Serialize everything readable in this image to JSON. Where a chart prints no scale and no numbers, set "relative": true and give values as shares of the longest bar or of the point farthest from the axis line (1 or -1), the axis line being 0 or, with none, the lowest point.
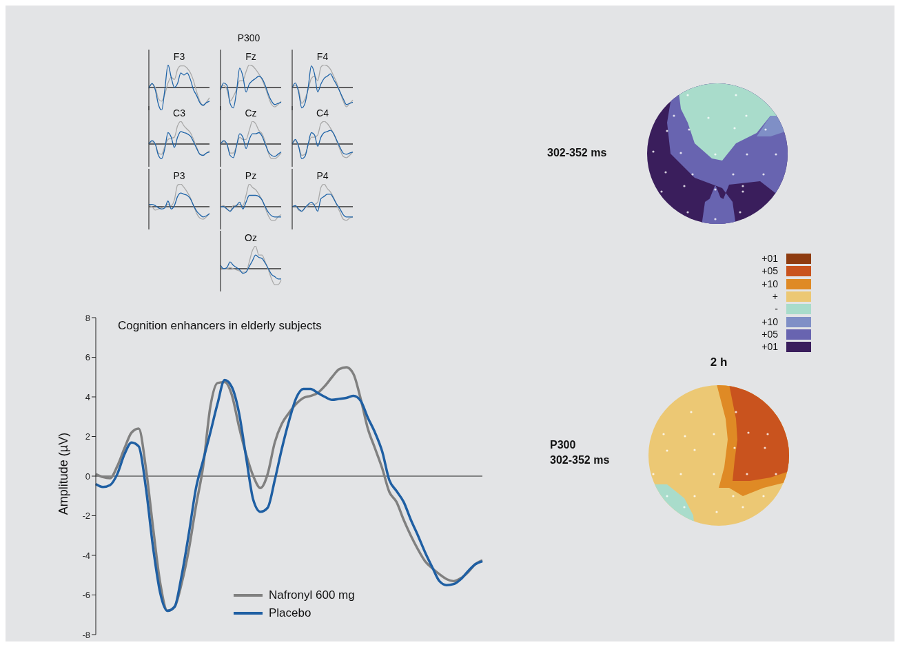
{
  "chart_data": [
    {
      "type": "line",
      "title": "Cognition enhancers in elderly subjects",
      "ylabel": "Amplitude (µV)",
      "legend": "bottom",
      "ylim": [
        -8,
        8
      ],
      "yticks": [
        -8,
        -6,
        -4,
        -2,
        0,
        2,
        4,
        6,
        8
      ],
      "categories": [
        null,
        null,
        null,
        null,
        null,
        null,
        null,
        null,
        null,
        null,
        null,
        null,
        null,
        null,
        null,
        null,
        null,
        null,
        null,
        null,
        null,
        null,
        null,
        null,
        null,
        null,
        null,
        null,
        null,
        null,
        null,
        null,
        null,
        null,
        null,
        null,
        null,
        null,
        null,
        null,
        null,
        null,
        null,
        null,
        null,
        null,
        null,
        null,
        null,
        null,
        null,
        null,
        null,
        null,
        null
      ],
      "series": [
        {
          "name": "Nafronyl 600 mg",
          "color": "#808080",
          "values": [
            0.1,
            -0.05,
            -0.1,
            0.5,
            1.4,
            2.2,
            2.4,
            0.4,
            -2.6,
            -5.4,
            -6.8,
            -6.6,
            -5.4,
            -3.7,
            -1.5,
            0.5,
            3.5,
            4.7,
            4.75,
            4.1,
            2.5,
            1.1,
            0,
            -0.6,
            0.1,
            1.7,
            2.65,
            3.2,
            3.65,
            3.95,
            4.05,
            4.2,
            4.55,
            5.0,
            5.4,
            5.5,
            5.15,
            3.9,
            2.4,
            1.4,
            0.4,
            -0.8,
            -1.3,
            -2.2,
            -3.0,
            -3.7,
            -4.3,
            -4.65,
            -4.95,
            -5.2,
            -5.3,
            -5.15,
            -4.85,
            -4.45,
            -4.25
          ]
        },
        {
          "name": "Placebo",
          "color": "#1f5fa3",
          "values": [
            -0.4,
            -0.55,
            -0.45,
            0.1,
            1.1,
            1.7,
            1.5,
            -0.6,
            -3.6,
            -5.9,
            -6.8,
            -6.6,
            -5.0,
            -2.9,
            -0.6,
            0.8,
            2.2,
            3.65,
            4.85,
            4.5,
            3.2,
            0.95,
            -1.2,
            -1.8,
            -1.6,
            -0.2,
            1.4,
            2.8,
            3.95,
            4.4,
            4.4,
            4.2,
            4.0,
            3.85,
            3.9,
            3.95,
            4.05,
            3.8,
            2.95,
            2.2,
            1.25,
            -0.2,
            -0.75,
            -1.3,
            -2.2,
            -3.0,
            -3.85,
            -4.6,
            -5.3,
            -5.5,
            -5.45,
            -5.2,
            -4.8,
            -4.45,
            -4.3
          ]
        }
      ]
    },
    {
      "type": "line",
      "title": "F3",
      "relative": true,
      "categories": [
        null,
        null,
        null,
        null,
        null,
        null,
        null,
        null,
        null,
        null,
        null,
        null,
        null,
        null,
        null,
        null,
        null,
        null,
        null,
        null
      ],
      "series": [
        {
          "color": "#a9a9a9",
          "values": [
            0,
            0.15,
            0,
            -0.5,
            -0.6,
            -0.3,
            0.2,
            0.45,
            0.35,
            0.8,
            0.95,
            0.95,
            0.85,
            0.65,
            0.3,
            -0.2,
            -0.6,
            -0.8,
            -0.65,
            -0.45
          ]
        },
        {
          "color": "#1f64a8",
          "values": [
            -0.04,
            0.18,
            -0.1,
            -0.75,
            -1.0,
            -0.1,
            1.0,
            0.45,
            0,
            0.18,
            0.64,
            0.55,
            0.64,
            0.36,
            -0.1,
            -0.36,
            -0.67,
            -0.78,
            -0.67,
            -0.6
          ]
        }
      ]
    },
    {
      "type": "line",
      "title": "Fz",
      "relative": true,
      "categories": [
        null,
        null,
        null,
        null,
        null,
        null,
        null,
        null,
        null,
        null,
        null,
        null,
        null,
        null,
        null,
        null,
        null,
        null,
        null,
        null
      ],
      "series": [
        {
          "color": "#a9a9a9",
          "values": [
            0,
            0.1,
            -0.1,
            -0.6,
            -0.4,
            -0.1,
            0.3,
            0.3,
            0.7,
            1.0,
            0.95,
            0.8,
            0.6,
            0.35,
            0,
            -0.4,
            -0.75,
            -0.85,
            -0.75,
            -0.6
          ]
        },
        {
          "color": "#1f64a8",
          "values": [
            -0.1,
            0.2,
            0.1,
            -0.7,
            -0.9,
            -0.2,
            0.85,
            0.5,
            -0.2,
            0.15,
            0.3,
            0.4,
            0.5,
            0.4,
            0.1,
            -0.3,
            -0.6,
            -0.75,
            -0.7,
            -0.65
          ]
        }
      ]
    },
    {
      "type": "line",
      "title": "F4",
      "relative": true,
      "categories": [
        null,
        null,
        null,
        null,
        null,
        null,
        null,
        null,
        null,
        null,
        null,
        null,
        null,
        null,
        null,
        null,
        null,
        null,
        null,
        null
      ],
      "series": [
        {
          "color": "#a9a9a9",
          "values": [
            0,
            0.1,
            -0.1,
            -0.7,
            -0.5,
            -0.1,
            0.4,
            0.5,
            0.3,
            0.9,
            1.0,
            0.95,
            0.8,
            0.5,
            0.2,
            -0.2,
            -0.6,
            -0.85,
            -0.7,
            -0.55
          ]
        },
        {
          "color": "#1f64a8",
          "values": [
            0,
            0.2,
            -0.2,
            -0.9,
            -0.7,
            0,
            0.95,
            0.6,
            -0.2,
            0.15,
            0.4,
            0.5,
            0.6,
            0.35,
            0.1,
            -0.2,
            -0.5,
            -0.75,
            -0.7,
            -0.65
          ]
        }
      ]
    },
    {
      "type": "line",
      "title": "C3",
      "relative": true,
      "categories": [
        null,
        null,
        null,
        null,
        null,
        null,
        null,
        null,
        null,
        null,
        null,
        null,
        null,
        null,
        null,
        null,
        null,
        null,
        null,
        null
      ],
      "series": [
        {
          "color": "#a9a9a9",
          "values": [
            0,
            0.1,
            0,
            -0.4,
            -0.45,
            -0.1,
            0.2,
            0.25,
            0.3,
            0.8,
            1.0,
            0.8,
            0.65,
            0.5,
            0.2,
            -0.15,
            -0.45,
            -0.5,
            -0.4,
            -0.3
          ]
        },
        {
          "color": "#1f64a8",
          "values": [
            0,
            0.15,
            0,
            -0.5,
            -0.65,
            -0.2,
            0.5,
            0.3,
            -0.15,
            0.3,
            0.55,
            0.5,
            0.45,
            0.35,
            0.1,
            -0.2,
            -0.45,
            -0.5,
            -0.4,
            -0.35
          ]
        }
      ]
    },
    {
      "type": "line",
      "title": "Cz",
      "relative": true,
      "categories": [
        null,
        null,
        null,
        null,
        null,
        null,
        null,
        null,
        null,
        null,
        null,
        null,
        null,
        null,
        null,
        null,
        null,
        null,
        null,
        null
      ],
      "series": [
        {
          "color": "#a9a9a9",
          "values": [
            0,
            0.1,
            0,
            -0.4,
            -0.4,
            -0.1,
            0.3,
            0.2,
            0.2,
            0.6,
            1.0,
            0.9,
            0.6,
            0.45,
            0.1,
            -0.4,
            -0.65,
            -0.65,
            -0.55,
            -0.4
          ]
        },
        {
          "color": "#1f64a8",
          "values": [
            0,
            0.15,
            0,
            -0.5,
            -0.6,
            -0.1,
            0.45,
            0.3,
            -0.2,
            0.2,
            0.45,
            0.45,
            0.5,
            0.35,
            0,
            -0.35,
            -0.5,
            -0.55,
            -0.45,
            -0.35
          ]
        }
      ]
    },
    {
      "type": "line",
      "title": "C4",
      "relative": true,
      "categories": [
        null,
        null,
        null,
        null,
        null,
        null,
        null,
        null,
        null,
        null,
        null,
        null,
        null,
        null,
        null,
        null,
        null,
        null,
        null,
        null
      ],
      "series": [
        {
          "color": "#a9a9a9",
          "values": [
            0,
            0.15,
            -0.1,
            -0.5,
            -0.45,
            -0.05,
            0.3,
            0.3,
            0.4,
            0.9,
            1.0,
            0.9,
            0.7,
            0.45,
            0.1,
            -0.25,
            -0.55,
            -0.6,
            -0.5,
            -0.35
          ]
        },
        {
          "color": "#1f64a8",
          "values": [
            0,
            0.2,
            -0.1,
            -0.65,
            -0.55,
            0,
            0.5,
            0.4,
            -0.1,
            0.3,
            0.5,
            0.55,
            0.6,
            0.45,
            0.15,
            -0.15,
            -0.4,
            -0.45,
            -0.4,
            -0.35
          ]
        }
      ]
    },
    {
      "type": "line",
      "title": "P3",
      "relative": true,
      "categories": [
        null,
        null,
        null,
        null,
        null,
        null,
        null,
        null,
        null,
        null,
        null,
        null,
        null,
        null,
        null,
        null,
        null,
        null,
        null,
        null
      ],
      "series": [
        {
          "color": "#a9a9a9",
          "values": [
            0.05,
            0,
            -0.15,
            -0.1,
            -0.05,
            0,
            0.1,
            0.05,
            0.3,
            0.95,
            1.0,
            0.85,
            0.65,
            0.4,
            0.05,
            -0.3,
            -0.5,
            -0.55,
            -0.45,
            -0.3
          ]
        },
        {
          "color": "#1f64a8",
          "values": [
            0.1,
            0.1,
            0.05,
            -0.05,
            -0.1,
            -0.05,
            0.25,
            -0.1,
            0.05,
            0.45,
            0.6,
            0.55,
            0.5,
            0.35,
            0.05,
            -0.2,
            -0.35,
            -0.45,
            -0.4,
            -0.3
          ]
        }
      ]
    },
    {
      "type": "line",
      "title": "Pz",
      "relative": true,
      "categories": [
        null,
        null,
        null,
        null,
        null,
        null,
        null,
        null,
        null,
        null,
        null,
        null,
        null,
        null,
        null,
        null,
        null,
        null,
        null,
        null
      ],
      "series": [
        {
          "color": "#a9a9a9",
          "values": [
            0,
            0.05,
            -0.1,
            -0.2,
            0.05,
            0.05,
            0.1,
            0.05,
            0.5,
            1.0,
            0.85,
            0.75,
            0.55,
            0.3,
            -0.05,
            -0.4,
            -0.6,
            -0.6,
            -0.45,
            -0.35
          ]
        },
        {
          "color": "#1f64a8",
          "values": [
            0,
            0,
            -0.1,
            -0.2,
            -0.05,
            0.05,
            0.2,
            -0.1,
            0.2,
            0.5,
            0.5,
            0.5,
            0.45,
            0.3,
            0,
            -0.25,
            -0.4,
            -0.45,
            -0.45,
            -0.45
          ]
        }
      ]
    },
    {
      "type": "line",
      "title": "P4",
      "relative": true,
      "categories": [
        null,
        null,
        null,
        null,
        null,
        null,
        null,
        null,
        null,
        null,
        null,
        null,
        null,
        null,
        null,
        null,
        null,
        null,
        null,
        null
      ],
      "series": [
        {
          "color": "#a9a9a9",
          "values": [
            0,
            0.05,
            -0.15,
            -0.2,
            -0.05,
            0.05,
            0.1,
            0.1,
            0.2,
            0.85,
            1.0,
            0.8,
            0.65,
            0.4,
            0.05,
            -0.25,
            -0.55,
            -0.6,
            -0.5,
            -0.45
          ]
        },
        {
          "color": "#1f64a8",
          "values": [
            0,
            0.05,
            -0.1,
            -0.2,
            -0.05,
            0.1,
            0.2,
            0.05,
            -0.2,
            0.35,
            0.45,
            0.55,
            0.55,
            0.35,
            0.1,
            -0.1,
            -0.35,
            -0.45,
            -0.45,
            -0.45
          ]
        }
      ]
    },
    {
      "type": "line",
      "title": "Oz",
      "relative": true,
      "categories": [
        null,
        null,
        null,
        null,
        null,
        null,
        null,
        null,
        null,
        null,
        null,
        null,
        null,
        null,
        null,
        null,
        null,
        null,
        null,
        null
      ],
      "series": [
        {
          "color": "#a9a9a9",
          "values": [
            0.05,
            0,
            0,
            0.05,
            0,
            -0.05,
            -0.1,
            -0.15,
            -0.15,
            0.3,
            0.8,
            1.0,
            0.6,
            0.6,
            0.3,
            -0.05,
            -0.45,
            -0.7,
            -0.7,
            -0.5
          ]
        },
        {
          "color": "#1f64a8",
          "values": [
            0.15,
            0,
            0.05,
            0.3,
            0.15,
            0.05,
            -0.05,
            -0.2,
            -0.15,
            0.1,
            0.35,
            0.6,
            0.5,
            0.45,
            0.25,
            0,
            -0.25,
            -0.35,
            -0.45,
            -0.45
          ]
        }
      ]
    },
    {
      "type": "other",
      "title": "2 h",
      "annotations": [
        "P300",
        "302-352 ms",
        "P300\n302-352 ms"
      ],
      "categories": [
        "+01",
        "+05",
        "+10",
        "+",
        "-",
        "+10",
        "+05",
        "+01"
      ],
      "colors": [
        "#8e3b10",
        "#c9531e",
        "#df8a25",
        "#ecc874",
        "#a9dccb",
        "#7f8fc6",
        "#6864b0",
        "#3a1e5c"
      ]
    }
  ]
}
